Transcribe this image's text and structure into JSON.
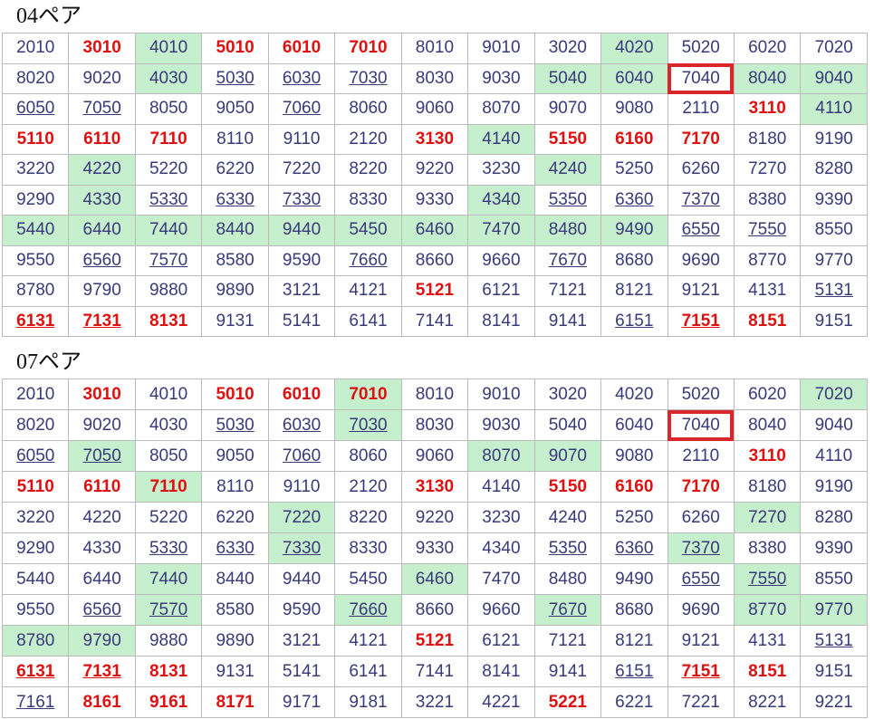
{
  "sections": [
    {
      "title": "04ペア",
      "rows": [
        [
          "2010",
          "3010",
          "4010",
          "5010",
          "6010",
          "7010",
          "8010",
          "9010",
          "3020",
          "4020",
          "5020",
          "6020",
          "7020"
        ],
        [
          "8020",
          "9020",
          "4030",
          "5030",
          "6030",
          "7030",
          "8030",
          "9030",
          "5040",
          "6040",
          "7040",
          "8040",
          "9040"
        ],
        [
          "6050",
          "7050",
          "8050",
          "9050",
          "7060",
          "8060",
          "9060",
          "8070",
          "9070",
          "9080",
          "2110",
          "3110",
          "4110"
        ],
        [
          "5110",
          "6110",
          "7110",
          "8110",
          "9110",
          "2120",
          "3130",
          "4140",
          "5150",
          "6160",
          "7170",
          "8180",
          "9190"
        ],
        [
          "3220",
          "4220",
          "5220",
          "6220",
          "7220",
          "8220",
          "9220",
          "3230",
          "4240",
          "5250",
          "6260",
          "7270",
          "8280"
        ],
        [
          "9290",
          "4330",
          "5330",
          "6330",
          "7330",
          "8330",
          "9330",
          "4340",
          "5350",
          "6360",
          "7370",
          "8380",
          "9390"
        ],
        [
          "5440",
          "6440",
          "7440",
          "8440",
          "9440",
          "5450",
          "6460",
          "7470",
          "8480",
          "9490",
          "6550",
          "7550",
          "8550"
        ],
        [
          "9550",
          "6560",
          "7570",
          "8580",
          "9590",
          "7660",
          "8660",
          "9660",
          "7670",
          "8680",
          "9690",
          "8770",
          "9770"
        ],
        [
          "8780",
          "9790",
          "9880",
          "9890",
          "3121",
          "4121",
          "5121",
          "6121",
          "7121",
          "8121",
          "9121",
          "4131",
          "5131"
        ],
        [
          "6131",
          "7131",
          "8131",
          "9131",
          "5141",
          "6141",
          "7141",
          "8141",
          "9141",
          "6151",
          "7151",
          "8151",
          "9151"
        ]
      ],
      "bold": [
        [
          0,
          1
        ],
        [
          0,
          3
        ],
        [
          0,
          4
        ],
        [
          0,
          5
        ],
        [
          2,
          11
        ],
        [
          3,
          0
        ],
        [
          3,
          1
        ],
        [
          3,
          2
        ],
        [
          3,
          6
        ],
        [
          3,
          8
        ],
        [
          3,
          9
        ],
        [
          3,
          10
        ],
        [
          8,
          6
        ],
        [
          9,
          0
        ],
        [
          9,
          1
        ],
        [
          9,
          2
        ],
        [
          9,
          10
        ],
        [
          9,
          11
        ]
      ],
      "green": [
        [
          0,
          2
        ],
        [
          0,
          9
        ],
        [
          1,
          2
        ],
        [
          1,
          8
        ],
        [
          1,
          9
        ],
        [
          1,
          11
        ],
        [
          1,
          12
        ],
        [
          2,
          12
        ],
        [
          3,
          7
        ],
        [
          4,
          1
        ],
        [
          4,
          8
        ],
        [
          5,
          1
        ],
        [
          5,
          7
        ],
        [
          6,
          0
        ],
        [
          6,
          1
        ],
        [
          6,
          2
        ],
        [
          6,
          3
        ],
        [
          6,
          4
        ],
        [
          6,
          5
        ],
        [
          6,
          6
        ],
        [
          6,
          7
        ],
        [
          6,
          8
        ],
        [
          6,
          9
        ]
      ],
      "underline": [
        [
          1,
          3
        ],
        [
          1,
          4
        ],
        [
          1,
          5
        ],
        [
          2,
          0
        ],
        [
          2,
          1
        ],
        [
          2,
          4
        ],
        [
          5,
          2
        ],
        [
          5,
          3
        ],
        [
          5,
          4
        ],
        [
          5,
          8
        ],
        [
          5,
          9
        ],
        [
          5,
          10
        ],
        [
          6,
          10
        ],
        [
          6,
          11
        ],
        [
          7,
          1
        ],
        [
          7,
          2
        ],
        [
          7,
          5
        ],
        [
          7,
          8
        ],
        [
          8,
          12
        ],
        [
          9,
          0
        ],
        [
          9,
          1
        ],
        [
          9,
          9
        ],
        [
          9,
          10
        ]
      ],
      "boxed": [
        [
          1,
          10
        ]
      ]
    },
    {
      "title": "07ペア",
      "rows": [
        [
          "2010",
          "3010",
          "4010",
          "5010",
          "6010",
          "7010",
          "8010",
          "9010",
          "3020",
          "4020",
          "5020",
          "6020",
          "7020"
        ],
        [
          "8020",
          "9020",
          "4030",
          "5030",
          "6030",
          "7030",
          "8030",
          "9030",
          "5040",
          "6040",
          "7040",
          "8040",
          "9040"
        ],
        [
          "6050",
          "7050",
          "8050",
          "9050",
          "7060",
          "8060",
          "9060",
          "8070",
          "9070",
          "9080",
          "2110",
          "3110",
          "4110"
        ],
        [
          "5110",
          "6110",
          "7110",
          "8110",
          "9110",
          "2120",
          "3130",
          "4140",
          "5150",
          "6160",
          "7170",
          "8180",
          "9190"
        ],
        [
          "3220",
          "4220",
          "5220",
          "6220",
          "7220",
          "8220",
          "9220",
          "3230",
          "4240",
          "5250",
          "6260",
          "7270",
          "8280"
        ],
        [
          "9290",
          "4330",
          "5330",
          "6330",
          "7330",
          "8330",
          "9330",
          "4340",
          "5350",
          "6360",
          "7370",
          "8380",
          "9390"
        ],
        [
          "5440",
          "6440",
          "7440",
          "8440",
          "9440",
          "5450",
          "6460",
          "7470",
          "8480",
          "9490",
          "6550",
          "7550",
          "8550"
        ],
        [
          "9550",
          "6560",
          "7570",
          "8580",
          "9590",
          "7660",
          "8660",
          "9660",
          "7670",
          "8680",
          "9690",
          "8770",
          "9770"
        ],
        [
          "8780",
          "9790",
          "9880",
          "9890",
          "3121",
          "4121",
          "5121",
          "6121",
          "7121",
          "8121",
          "9121",
          "4131",
          "5131"
        ],
        [
          "6131",
          "7131",
          "8131",
          "9131",
          "5141",
          "6141",
          "7141",
          "8141",
          "9141",
          "6151",
          "7151",
          "8151",
          "9151"
        ],
        [
          "7161",
          "8161",
          "9161",
          "8171",
          "9171",
          "9181",
          "3221",
          "4221",
          "5221",
          "6221",
          "7221",
          "8221",
          "9221"
        ]
      ],
      "bold": [
        [
          0,
          1
        ],
        [
          0,
          3
        ],
        [
          0,
          4
        ],
        [
          0,
          5
        ],
        [
          2,
          11
        ],
        [
          3,
          0
        ],
        [
          3,
          1
        ],
        [
          3,
          2
        ],
        [
          3,
          6
        ],
        [
          3,
          8
        ],
        [
          3,
          9
        ],
        [
          3,
          10
        ],
        [
          8,
          6
        ],
        [
          9,
          0
        ],
        [
          9,
          1
        ],
        [
          9,
          2
        ],
        [
          9,
          10
        ],
        [
          9,
          11
        ],
        [
          10,
          1
        ],
        [
          10,
          2
        ],
        [
          10,
          3
        ],
        [
          10,
          8
        ]
      ],
      "green": [
        [
          0,
          5
        ],
        [
          0,
          12
        ],
        [
          1,
          5
        ],
        [
          2,
          1
        ],
        [
          2,
          7
        ],
        [
          2,
          8
        ],
        [
          3,
          2
        ],
        [
          4,
          4
        ],
        [
          4,
          11
        ],
        [
          5,
          4
        ],
        [
          5,
          10
        ],
        [
          6,
          2
        ],
        [
          6,
          6
        ],
        [
          6,
          11
        ],
        [
          7,
          2
        ],
        [
          7,
          5
        ],
        [
          7,
          8
        ],
        [
          7,
          11
        ],
        [
          7,
          12
        ],
        [
          8,
          0
        ],
        [
          8,
          1
        ]
      ],
      "underline": [
        [
          1,
          3
        ],
        [
          1,
          4
        ],
        [
          1,
          5
        ],
        [
          2,
          0
        ],
        [
          2,
          1
        ],
        [
          2,
          4
        ],
        [
          5,
          2
        ],
        [
          5,
          3
        ],
        [
          5,
          4
        ],
        [
          5,
          8
        ],
        [
          5,
          9
        ],
        [
          5,
          10
        ],
        [
          6,
          10
        ],
        [
          6,
          11
        ],
        [
          7,
          1
        ],
        [
          7,
          2
        ],
        [
          7,
          5
        ],
        [
          7,
          8
        ],
        [
          8,
          12
        ],
        [
          9,
          0
        ],
        [
          9,
          1
        ],
        [
          9,
          9
        ],
        [
          9,
          10
        ],
        [
          10,
          0
        ]
      ],
      "boxed": [
        [
          1,
          10
        ]
      ]
    }
  ]
}
